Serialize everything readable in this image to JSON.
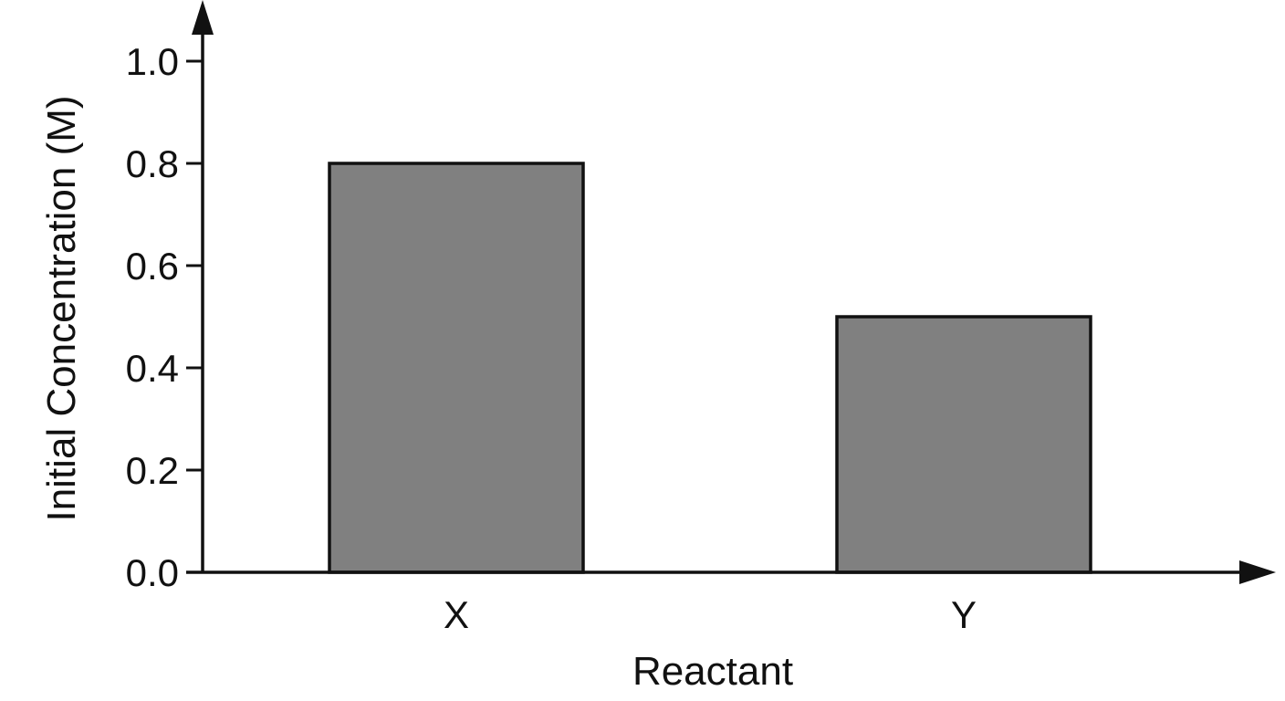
{
  "chart_data": {
    "type": "bar",
    "categories": [
      "X",
      "Y"
    ],
    "values": [
      0.8,
      0.5
    ],
    "xlabel": "Reactant",
    "ylabel": "Initial Concentration (M)",
    "ylim": [
      0.0,
      1.0
    ],
    "yticks": [
      "0.0",
      "0.2",
      "0.4",
      "0.6",
      "0.8",
      "1.0"
    ],
    "ytick_values": [
      0.0,
      0.2,
      0.4,
      0.6,
      0.8,
      1.0
    ],
    "bar_color": "#808080",
    "grid": false,
    "legend": "none"
  }
}
